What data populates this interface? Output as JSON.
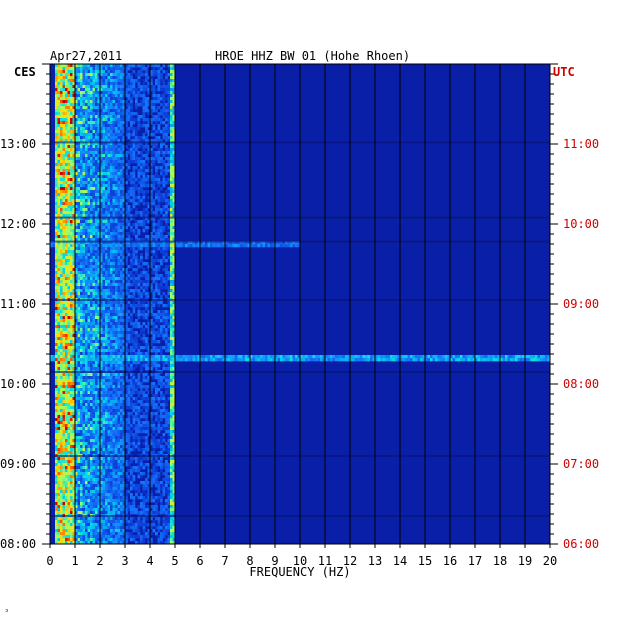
{
  "header": {
    "date": "Apr27,2011",
    "station": "HROE HHZ BW 01 (Hohe Rhoen)",
    "left_zone": "CES",
    "right_zone": "UTC"
  },
  "footer": {
    "mark": "ᵓ"
  },
  "colors": {
    "background_blue": "#0a1fa8",
    "grid": "#000000",
    "label_black": "#000000",
    "label_red": "#d00000"
  },
  "chart_data": {
    "type": "heatmap",
    "xlabel": "FREQUENCY (HZ)",
    "ylabel": "",
    "xlim": [
      0,
      20
    ],
    "x_ticks": [
      "0",
      "1",
      "2",
      "3",
      "4",
      "5",
      "6",
      "7",
      "8",
      "9",
      "10",
      "11",
      "12",
      "13",
      "14",
      "15",
      "16",
      "17",
      "18",
      "19",
      "20"
    ],
    "y_left_ticks": [
      "08:00",
      "09:00",
      "10:00",
      "11:00",
      "12:00",
      "13:00"
    ],
    "y_right_ticks": [
      "06:00",
      "07:00",
      "08:00",
      "09:00",
      "10:00",
      "11:00"
    ],
    "y_range_ces_hours": [
      8.0,
      14.0
    ],
    "grid": true,
    "features": [
      {
        "description_band_hz": [
          0.2,
          1.0
        ],
        "intensity": "high"
      },
      {
        "description_band_hz": [
          1.0,
          3.0
        ],
        "intensity": "medium"
      },
      {
        "description_band_hz": [
          4.8,
          5.0
        ],
        "intensity": "medium"
      },
      {
        "description_line_time_ces": "10:20",
        "intensity": "medium"
      },
      {
        "description_line_time_ces": "11:45",
        "intensity": "low"
      }
    ]
  }
}
